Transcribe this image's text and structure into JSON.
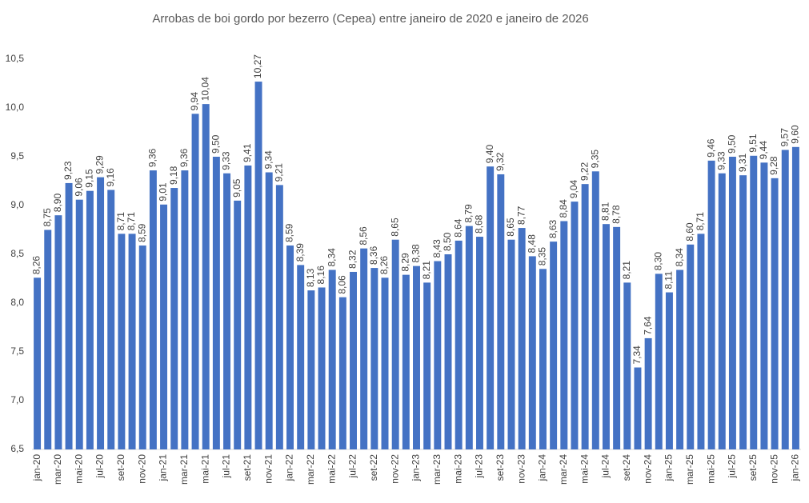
{
  "chart_data": {
    "type": "bar",
    "title": "Arrobas de boi gordo por bezerro (Cepea) entre janeiro de 2020 e janeiro de 2026",
    "categories": [
      "jan-20",
      null,
      "mar-20",
      null,
      "mai-20",
      null,
      "jul-20",
      null,
      "set-20",
      null,
      "nov-20",
      null,
      "jan-21",
      null,
      "mar-21",
      null,
      "mai-21",
      null,
      "jul-21",
      null,
      "set-21",
      null,
      "nov-21",
      null,
      "jan-22",
      null,
      "mar-22",
      null,
      "mai-22",
      null,
      "jul-22",
      null,
      "set-22",
      null,
      "nov-22",
      null,
      "jan-23",
      null,
      "mar-23",
      null,
      "mai-23",
      null,
      "jul-23",
      null,
      "set-23",
      null,
      "nov-23",
      null,
      "jan-24",
      null,
      "mar-24",
      null,
      "mai-24",
      null,
      "jul-24",
      null,
      "set-24",
      null,
      "nov-24",
      null,
      "jan-25",
      null,
      "mar-25",
      null,
      "mai-25",
      null,
      "jul-25",
      null,
      "set-25",
      null,
      "nov-25",
      null,
      "jan-26"
    ],
    "values": [
      8.26,
      8.75,
      8.9,
      9.23,
      9.06,
      9.15,
      9.29,
      9.16,
      8.71,
      8.71,
      8.59,
      9.36,
      9.01,
      9.18,
      9.36,
      9.94,
      10.04,
      9.5,
      9.33,
      9.05,
      9.41,
      10.27,
      9.34,
      9.21,
      8.59,
      8.39,
      8.13,
      8.16,
      8.34,
      8.06,
      8.32,
      8.56,
      8.36,
      8.26,
      8.65,
      8.29,
      8.38,
      8.21,
      8.43,
      8.5,
      8.64,
      8.79,
      8.68,
      9.4,
      9.32,
      8.65,
      8.77,
      8.48,
      8.35,
      8.63,
      8.84,
      9.04,
      9.22,
      9.35,
      8.81,
      8.78,
      8.21,
      7.34,
      7.64,
      8.3,
      8.11,
      8.34,
      8.6,
      8.71,
      9.46,
      9.33,
      9.5,
      9.31,
      9.51,
      9.44,
      9.28,
      9.57,
      9.6
    ],
    "value_labels": [
      "8,26",
      "8,75",
      "8,90",
      "9,23",
      "9,06",
      "9,15",
      "9,29",
      "9,16",
      "8,71",
      "8,71",
      "8,59",
      "9,36",
      "9,01",
      "9,18",
      "9,36",
      "9,94",
      "10,04",
      "9,50",
      "9,33",
      "9,05",
      "9,41",
      "10,27",
      "9,34",
      "9,21",
      "8,59",
      "8,39",
      "8,13",
      "8,16",
      "8,34",
      "8,06",
      "8,32",
      "8,56",
      "8,36",
      "8,26",
      "8,65",
      "8,29",
      "8,38",
      "8,21",
      "8,43",
      "8,50",
      "8,64",
      "8,79",
      "8,68",
      "9,40",
      "9,32",
      "8,65",
      "8,77",
      "8,48",
      "8,35",
      "8,63",
      "8,84",
      "9,04",
      "9,22",
      "9,35",
      "8,81",
      "8,78",
      "8,21",
      "7,34",
      "7,64",
      "8,30",
      "8,11",
      "8,34",
      "8,60",
      "8,71",
      "9,46",
      "9,33",
      "9,50",
      "9,31",
      "9,51",
      "9,44",
      "9,28",
      "9,57",
      "9,60"
    ],
    "color": "#4472c4",
    "ylim": [
      6.5,
      10.5
    ],
    "yticks": [
      {
        "value": 6.5,
        "label": "6,5"
      },
      {
        "value": 7.0,
        "label": "7,0"
      },
      {
        "value": 7.5,
        "label": "7,5"
      },
      {
        "value": 8.0,
        "label": "8,0"
      },
      {
        "value": 8.5,
        "label": "8,5"
      },
      {
        "value": 9.0,
        "label": "9,0"
      },
      {
        "value": 9.5,
        "label": "9,5"
      },
      {
        "value": 10.0,
        "label": "10,0"
      },
      {
        "value": 10.5,
        "label": "10,5"
      }
    ],
    "grid": false
  }
}
